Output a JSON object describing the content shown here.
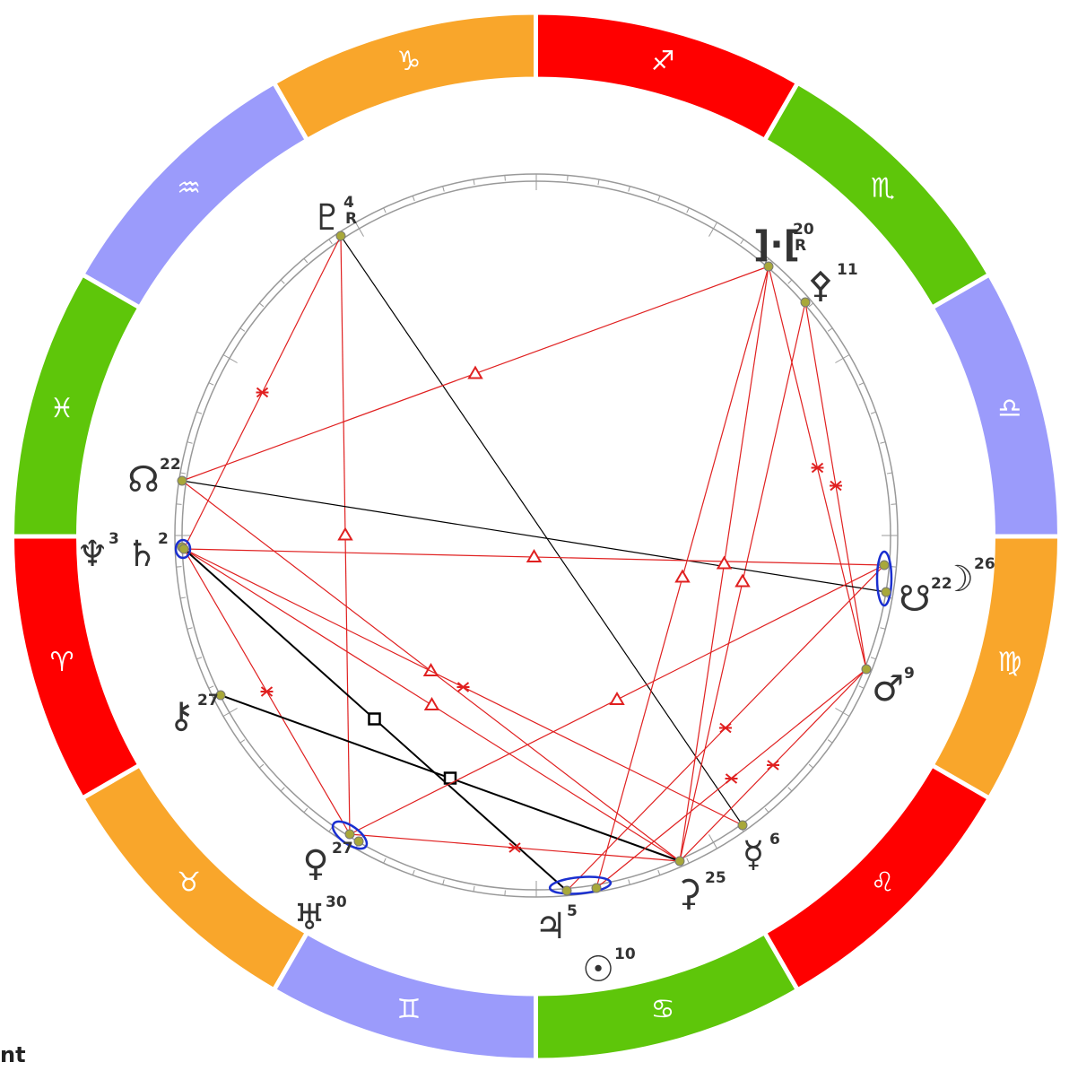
{
  "zodiac_signs": [
    {
      "glyph": "♈"
    },
    {
      "glyph": "♉"
    },
    {
      "glyph": "♊"
    },
    {
      "glyph": "♋"
    },
    {
      "glyph": "♌"
    },
    {
      "glyph": "♍"
    },
    {
      "glyph": "♎"
    },
    {
      "glyph": "♏"
    },
    {
      "glyph": "♐"
    },
    {
      "glyph": "♑"
    },
    {
      "glyph": "♒"
    },
    {
      "glyph": "♓"
    }
  ],
  "planets": [
    {
      "glyph": "♇",
      "degree": "4",
      "retrograde": "R"
    },
    {
      "glyph": "]·[",
      "degree": "20",
      "retrograde": "R"
    },
    {
      "glyph": "⚴",
      "degree": "11"
    },
    {
      "glyph": "☊",
      "degree": "22"
    },
    {
      "glyph": "♆",
      "degree": "3"
    },
    {
      "glyph": "♄",
      "degree": "2"
    },
    {
      "glyph": "☽",
      "degree": "26"
    },
    {
      "glyph": "☋",
      "degree": "22"
    },
    {
      "glyph": "♂",
      "degree": "9"
    },
    {
      "glyph": "⚷",
      "degree": "27"
    },
    {
      "glyph": "♀",
      "degree": "27"
    },
    {
      "glyph": "♅",
      "degree": "30"
    },
    {
      "glyph": "♃",
      "degree": "5"
    },
    {
      "glyph": "☉",
      "degree": "10"
    },
    {
      "glyph": "⚳",
      "degree": "25"
    },
    {
      "glyph": "☿",
      "degree": "6"
    }
  ],
  "footer_text": "nt"
}
